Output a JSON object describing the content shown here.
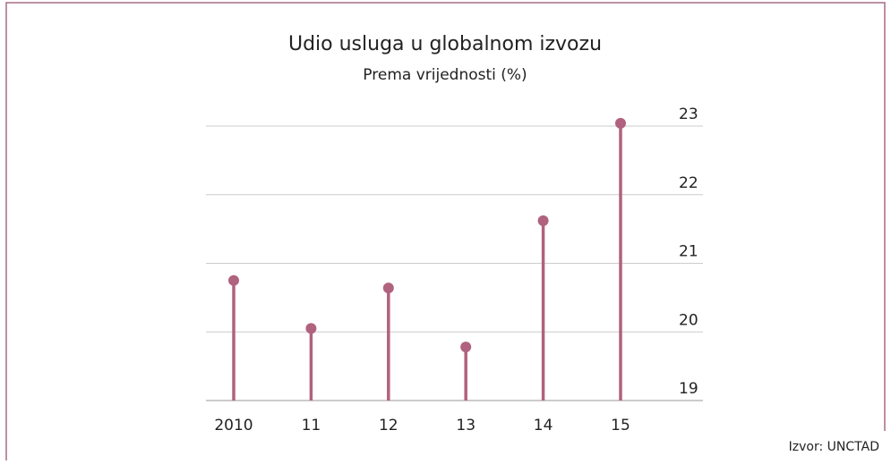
{
  "chart_data": {
    "type": "lollipop",
    "title": "Udio usluga u globalnom izvozu",
    "subtitle": "Prema vrijednosti (%)",
    "categories": [
      "2010",
      "11",
      "12",
      "13",
      "14",
      "15"
    ],
    "values": [
      20.75,
      20.05,
      20.64,
      19.78,
      21.62,
      23.04
    ],
    "color": "#b0627e",
    "ylim": [
      19,
      23.4
    ],
    "yticks": [
      19,
      20,
      21,
      22,
      23
    ],
    "grid": true,
    "source": "Izvor: UNCTAD"
  }
}
